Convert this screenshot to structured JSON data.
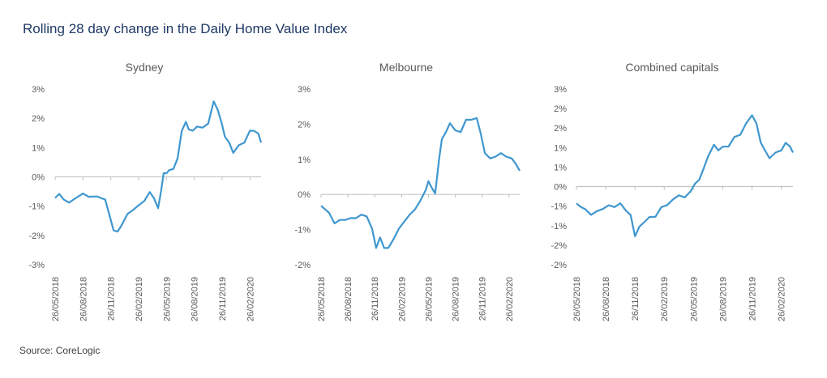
{
  "title": "Rolling 28 day change in the Daily Home Value Index",
  "source": "Source: CoreLogic",
  "colors": {
    "line": "#3f97cf",
    "axis": "#bfbfbf",
    "text": "#595959",
    "title": "#1f3864"
  },
  "chart_data": [
    {
      "type": "line",
      "title": "Sydney",
      "categories": [
        "26/05/2018",
        "26/08/2018",
        "26/11/2018",
        "26/02/2019",
        "26/05/2019",
        "26/08/2019",
        "26/11/2019",
        "26/02/2020"
      ],
      "yticks": [
        "3%",
        "2%",
        "1%",
        "0%",
        "-1%",
        "-2%",
        "-3%"
      ],
      "ylim": [
        -3,
        3
      ],
      "series": [
        {
          "x": [
            0,
            0.15,
            0.3,
            0.5,
            0.75,
            0.9,
            1,
            1.2,
            1.5,
            1.8,
            2.0,
            2.1,
            2.25,
            2.4,
            2.6,
            2.8,
            3.0,
            3.2,
            3.4,
            3.55,
            3.7,
            3.8,
            3.9,
            4.0,
            4.1,
            4.25,
            4.4,
            4.55,
            4.7,
            4.8,
            4.95,
            5.1,
            5.3,
            5.5,
            5.7,
            5.85,
            6.0,
            6.1,
            6.25,
            6.4,
            6.6,
            6.8,
            7.0,
            7.15,
            7.3,
            7.4
          ],
          "y": [
            -0.75,
            -0.55,
            -0.8,
            -0.85,
            -0.75,
            -0.6,
            -0.6,
            -0.65,
            -0.7,
            -0.75,
            -1.5,
            -1.8,
            -1.9,
            -1.6,
            -1.3,
            -1.1,
            -1.0,
            -0.8,
            -0.55,
            -0.7,
            -1.1,
            -0.5,
            0.1,
            0.15,
            0.2,
            0.3,
            0.6,
            1.6,
            1.85,
            1.65,
            1.55,
            1.75,
            1.65,
            1.85,
            2.55,
            2.3,
            1.75,
            1.4,
            1.15,
            0.85,
            1.05,
            1.2,
            1.55,
            1.6,
            1.45,
            1.2
          ]
        }
      ]
    },
    {
      "type": "line",
      "title": "Melbourne",
      "categories": [
        "26/05/2018",
        "26/08/2018",
        "26/11/2018",
        "26/02/2019",
        "26/05/2019",
        "26/08/2019",
        "26/11/2019",
        "26/02/2020"
      ],
      "yticks": [
        "3%",
        "2%",
        "1%",
        "0%",
        "-1%",
        "-2%"
      ],
      "ylim": [
        -2,
        3
      ],
      "series": [
        {
          "x": [
            0,
            0.15,
            0.3,
            0.5,
            0.7,
            0.9,
            1.1,
            1.3,
            1.5,
            1.7,
            1.9,
            2.05,
            2.2,
            2.35,
            2.5,
            2.7,
            2.9,
            3.1,
            3.3,
            3.5,
            3.7,
            3.9,
            4.0,
            4.1,
            4.25,
            4.4,
            4.5,
            4.65,
            4.8,
            5.0,
            5.2,
            5.4,
            5.6,
            5.8,
            5.95,
            6.1,
            6.3,
            6.5,
            6.7,
            6.9,
            7.1,
            7.25,
            7.4
          ],
          "y": [
            -0.35,
            -0.4,
            -0.55,
            -0.8,
            -0.75,
            -0.7,
            -0.7,
            -0.65,
            -0.6,
            -0.6,
            -1.0,
            -1.5,
            -1.25,
            -1.5,
            -1.55,
            -1.25,
            -1.0,
            -0.75,
            -0.6,
            -0.4,
            -0.2,
            0.15,
            0.35,
            0.25,
            0.0,
            1.05,
            1.55,
            1.8,
            2.0,
            1.85,
            1.75,
            2.15,
            2.1,
            2.2,
            1.7,
            1.2,
            1.0,
            1.1,
            1.15,
            1.1,
            1.0,
            0.9,
            0.65
          ]
        }
      ]
    },
    {
      "type": "line",
      "title": "Combined capitals",
      "categories": [
        "26/05/2018",
        "26/08/2018",
        "26/11/2018",
        "26/02/2019",
        "26/05/2019",
        "26/08/2019",
        "26/11/2019",
        "26/02/2020"
      ],
      "yticks": [
        "3%",
        "2%",
        "2%",
        "1%",
        "1%",
        "0%",
        "-1%",
        "-1%",
        "-2%",
        "-2%"
      ],
      "ylim": [
        -2,
        2.5
      ],
      "series": [
        {
          "x": [
            0,
            0.15,
            0.3,
            0.5,
            0.7,
            0.9,
            1.1,
            1.3,
            1.5,
            1.7,
            1.85,
            2.0,
            2.15,
            2.3,
            2.5,
            2.7,
            2.9,
            3.1,
            3.3,
            3.5,
            3.7,
            3.9,
            4.05,
            4.2,
            4.35,
            4.5,
            4.7,
            4.85,
            5.0,
            5.2,
            5.4,
            5.6,
            5.8,
            6.0,
            6.15,
            6.3,
            6.45,
            6.6,
            6.8,
            7.0,
            7.15,
            7.3,
            7.4
          ],
          "y": [
            -0.45,
            -0.5,
            -0.6,
            -0.7,
            -0.65,
            -0.55,
            -0.5,
            -0.5,
            -0.45,
            -0.6,
            -0.75,
            -1.25,
            -1.05,
            -0.9,
            -0.8,
            -0.75,
            -0.55,
            -0.45,
            -0.35,
            -0.2,
            -0.3,
            -0.1,
            0.05,
            0.2,
            0.45,
            0.8,
            1.05,
            0.95,
            1.0,
            1.05,
            1.25,
            1.35,
            1.6,
            1.85,
            1.6,
            1.15,
            0.9,
            0.75,
            0.85,
            0.95,
            1.1,
            1.05,
            0.85
          ]
        }
      ]
    }
  ]
}
